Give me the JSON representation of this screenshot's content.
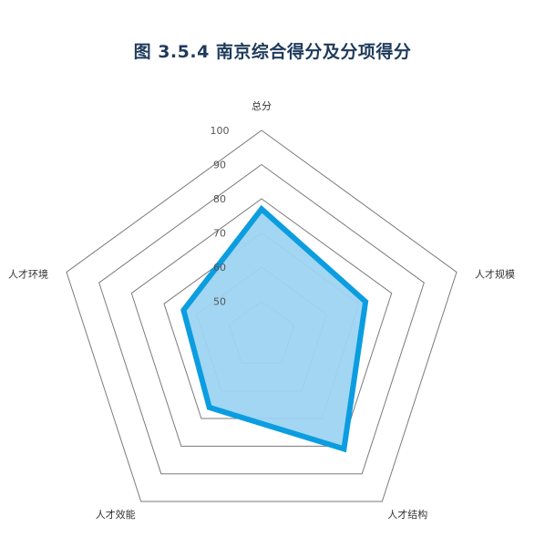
{
  "chart_data": {
    "type": "radar",
    "title": "图 3.5.4 南京综合得分及分项得分",
    "axes": [
      "总分",
      "人才规模",
      "人才结构",
      "人才效能",
      "人才环境"
    ],
    "ticks": [
      "50",
      "60",
      "70",
      "80",
      "90",
      "100"
    ],
    "rlim": [
      40,
      100
    ],
    "series": [
      {
        "values": [
          77,
          72,
          81,
          66,
          64
        ]
      }
    ],
    "grid": true,
    "colors": {
      "series_line": "#0b9de0",
      "series_fill": "#9dd4f2",
      "grid": "#7a7a7a"
    }
  }
}
